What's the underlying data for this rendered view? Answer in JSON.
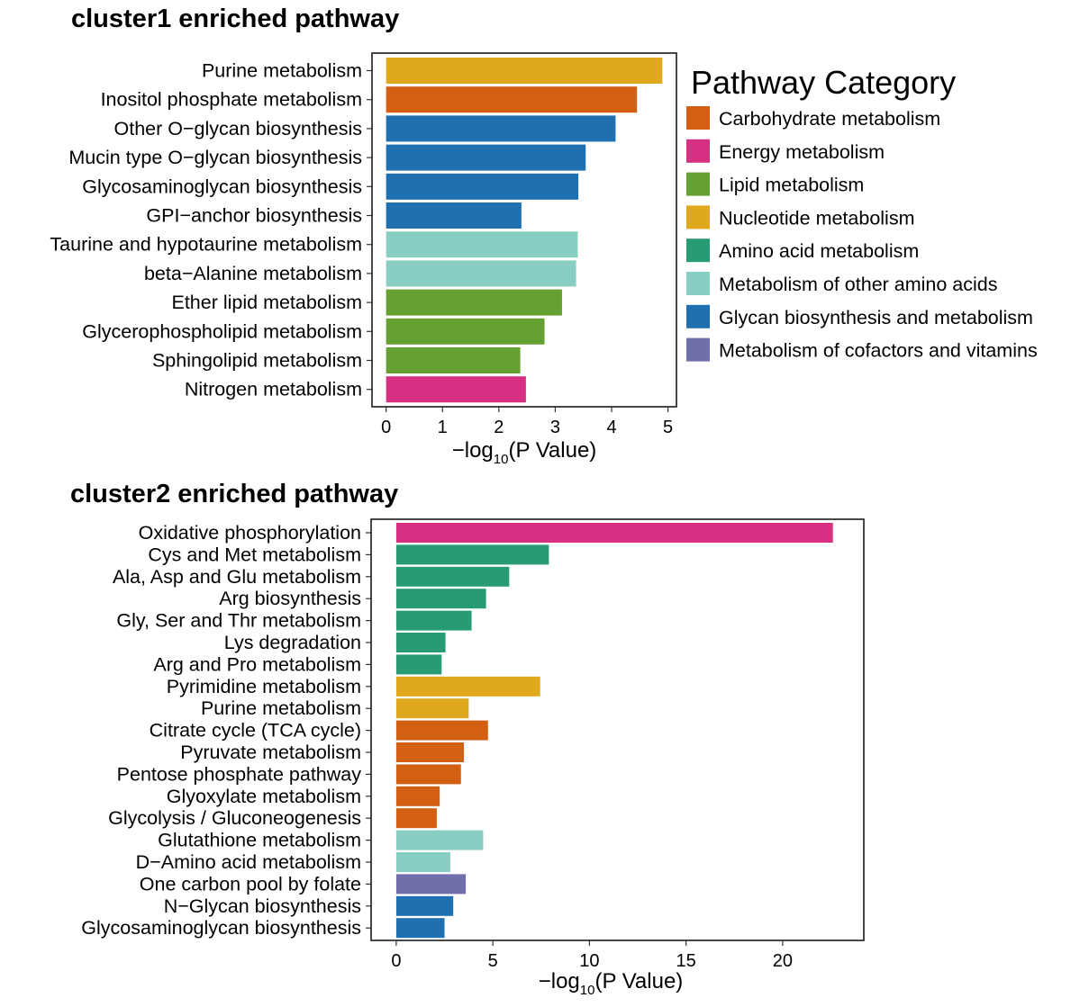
{
  "legend": {
    "title": "Pathway Category",
    "items": [
      {
        "label": "Carbohydrate metabolism",
        "color": "#d35f12"
      },
      {
        "label": "Energy metabolism",
        "color": "#d72f82"
      },
      {
        "label": "Lipid metabolism",
        "color": "#64a032"
      },
      {
        "label": "Nucleotide metabolism",
        "color": "#e0a81c"
      },
      {
        "label": "Amino acid metabolism",
        "color": "#279a76"
      },
      {
        "label": "Metabolism of other amino acids",
        "color": "#89cec2"
      },
      {
        "label": "Glycan biosynthesis and metabolism",
        "color": "#1f70b0"
      },
      {
        "label": "Metabolism of cofactors and vitamins",
        "color": "#6e6fab"
      }
    ]
  },
  "chart_data": [
    {
      "type": "bar",
      "orientation": "horizontal",
      "title": "cluster1 enriched pathway",
      "xlabel": "−log10(P Value)",
      "xlabel_parts": {
        "prefix": "−log",
        "sub": "10",
        "suffix": "(P Value)"
      },
      "xlim": [
        -0.25,
        5.15
      ],
      "xticks": [
        0,
        1,
        2,
        3,
        4,
        5
      ],
      "grid": false,
      "categories": [
        "Purine metabolism",
        "Inositol phosphate metabolism",
        "Other O−glycan biosynthesis",
        "Mucin type O−glycan biosynthesis",
        "Glycosaminoglycan biosynthesis",
        "GPI−anchor biosynthesis",
        "Taurine and hypotaurine metabolism",
        "beta−Alanine metabolism",
        "Ether lipid metabolism",
        "Glycerophospholipid metabolism",
        "Sphingolipid metabolism",
        "Nitrogen metabolism"
      ],
      "values": [
        4.9,
        4.45,
        4.07,
        3.54,
        3.41,
        2.4,
        3.4,
        3.37,
        3.12,
        2.81,
        2.38,
        2.48
      ],
      "bar_categories": [
        "Nucleotide metabolism",
        "Carbohydrate metabolism",
        "Glycan biosynthesis and metabolism",
        "Glycan biosynthesis and metabolism",
        "Glycan biosynthesis and metabolism",
        "Glycan biosynthesis and metabolism",
        "Metabolism of other amino acids",
        "Metabolism of other amino acids",
        "Lipid metabolism",
        "Lipid metabolism",
        "Lipid metabolism",
        "Energy metabolism"
      ]
    },
    {
      "type": "bar",
      "orientation": "horizontal",
      "title": "cluster2 enriched pathway",
      "xlabel": "−log10(P Value)",
      "xlabel_parts": {
        "prefix": "−log",
        "sub": "10",
        "suffix": "(P Value)"
      },
      "xlim": [
        -1.3,
        24.2
      ],
      "xticks": [
        0,
        5,
        10,
        15,
        20
      ],
      "grid": false,
      "categories": [
        "Oxidative phosphorylation",
        "Cys and Met metabolism",
        "Ala, Asp and Glu metabolism",
        "Arg biosynthesis",
        "Gly, Ser and Thr metabolism",
        "Lys degradation",
        "Arg and Pro metabolism",
        "Pyrimidine metabolism",
        "Purine metabolism",
        "Citrate cycle (TCA cycle)",
        "Pyruvate metabolism",
        "Pentose phosphate pathway",
        "Glyoxylate metabolism",
        "Glycolysis / Gluconeogenesis",
        "Glutathione metabolism",
        "D−Amino acid metabolism",
        "One carbon pool by folate",
        "N−Glycan biosynthesis",
        "Glycosaminoglycan biosynthesis"
      ],
      "values": [
        22.6,
        7.9,
        5.85,
        4.65,
        3.9,
        2.55,
        2.35,
        7.45,
        3.75,
        4.75,
        3.5,
        3.35,
        2.25,
        2.1,
        4.5,
        2.8,
        3.6,
        2.95,
        2.5
      ],
      "bar_categories": [
        "Energy metabolism",
        "Amino acid metabolism",
        "Amino acid metabolism",
        "Amino acid metabolism",
        "Amino acid metabolism",
        "Amino acid metabolism",
        "Amino acid metabolism",
        "Nucleotide metabolism",
        "Nucleotide metabolism",
        "Carbohydrate metabolism",
        "Carbohydrate metabolism",
        "Carbohydrate metabolism",
        "Carbohydrate metabolism",
        "Carbohydrate metabolism",
        "Metabolism of other amino acids",
        "Metabolism of other amino acids",
        "Metabolism of cofactors and vitamins",
        "Glycan biosynthesis and metabolism",
        "Glycan biosynthesis and metabolism"
      ]
    }
  ]
}
